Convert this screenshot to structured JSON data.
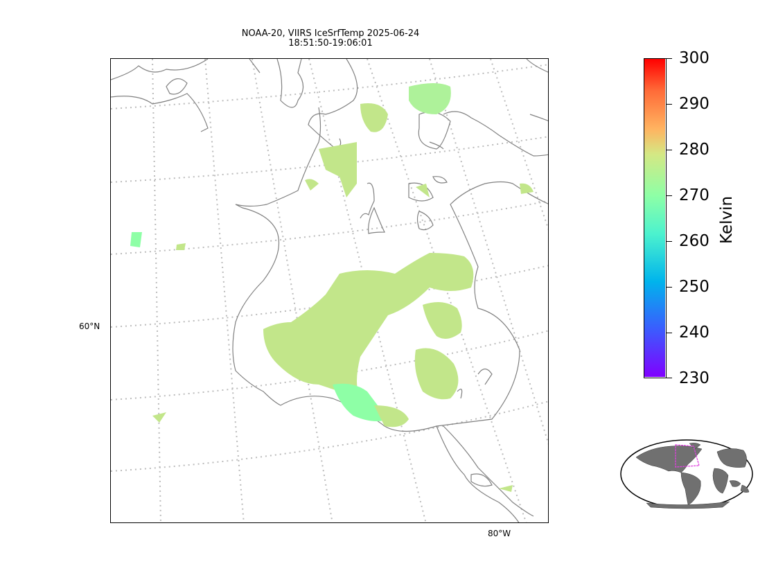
{
  "title": {
    "line1": "NOAA-20, VIIRS IceSrfTemp 2025-06-24",
    "line2": "18:51:50-19:06:01"
  },
  "map": {
    "lat_label": "60°N",
    "lon_label": "80°W",
    "coastline_color": "#808080",
    "gridline_color": "#bbbbbb",
    "data_color_main": "#c2e68a",
    "data_color_cold": "#8effa6"
  },
  "colorbar": {
    "label": "Kelvin",
    "ticks": [
      "300",
      "290",
      "280",
      "270",
      "260",
      "250",
      "240",
      "230"
    ],
    "vmin": 230,
    "vmax": 300,
    "colormap": "rainbow"
  },
  "inset": {
    "land_color": "#707070",
    "box_color": "#e040e0"
  }
}
